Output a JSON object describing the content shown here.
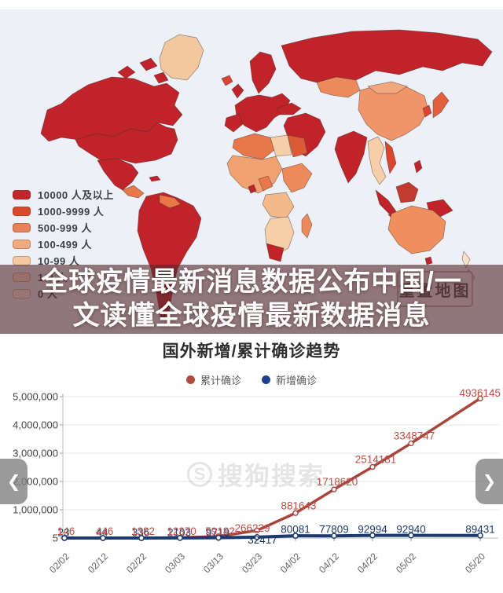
{
  "headline": {
    "line1": "全球疫情最新消息数据公布中国/一",
    "line2": "文读懂全球疫情最新数据消息"
  },
  "map": {
    "background": "#edf1f7",
    "reset_button_label": "重置地图",
    "legend": [
      {
        "label": "10000 人及以上",
        "color": "#c2262c"
      },
      {
        "label": "1000-9999 人",
        "color": "#d9492e"
      },
      {
        "label": "500-999 人",
        "color": "#e6815a"
      },
      {
        "label": "100-499 人",
        "color": "#f0ab7e"
      },
      {
        "label": "10-99 人",
        "color": "#f5c9a2"
      },
      {
        "label": "1-9 人",
        "color": "#f9dfc5"
      },
      {
        "label": "0 人",
        "color": "#fdf0e2"
      }
    ],
    "regions": [
      {
        "name": "greenland",
        "color": "#f2c89e"
      },
      {
        "name": "arctic-island-1",
        "color": "#c0242a"
      },
      {
        "name": "arctic-island-2",
        "color": "#c0242a"
      },
      {
        "name": "arctic-island-3",
        "color": "#c0242a"
      },
      {
        "name": "canada",
        "color": "#c0242a"
      },
      {
        "name": "usa",
        "color": "#c0242a"
      },
      {
        "name": "mexico",
        "color": "#c0242a"
      },
      {
        "name": "central-america",
        "color": "#e8774a"
      },
      {
        "name": "caribbean",
        "color": "#c0242a"
      },
      {
        "name": "south-america",
        "color": "#c0242a"
      },
      {
        "name": "venezuela",
        "color": "#e8774a"
      },
      {
        "name": "iceland",
        "color": "#d9452e"
      },
      {
        "name": "scandinavia",
        "color": "#c0242a"
      },
      {
        "name": "uk",
        "color": "#c0242a"
      },
      {
        "name": "europe",
        "color": "#c0242a"
      },
      {
        "name": "iberia",
        "color": "#c0242a"
      },
      {
        "name": "russia",
        "color": "#c0242a"
      },
      {
        "name": "kazakhstan",
        "color": "#ed8a5c"
      },
      {
        "name": "turkey",
        "color": "#c0242a"
      },
      {
        "name": "middle-east",
        "color": "#c0242a"
      },
      {
        "name": "china",
        "color": "#f0946a"
      },
      {
        "name": "mongolia",
        "color": "#f2a87e"
      },
      {
        "name": "india",
        "color": "#c0242a"
      },
      {
        "name": "indochina",
        "color": "#f6cfa8"
      },
      {
        "name": "vietnam",
        "color": "#d9452e"
      },
      {
        "name": "japan",
        "color": "#e2603c"
      },
      {
        "name": "korea",
        "color": "#d9452e"
      },
      {
        "name": "philippines",
        "color": "#c0242a"
      },
      {
        "name": "borneo",
        "color": "#c33a30"
      },
      {
        "name": "sumatra",
        "color": "#c0242a"
      },
      {
        "name": "java",
        "color": "#c0242a"
      },
      {
        "name": "papua",
        "color": "#c0242a"
      },
      {
        "name": "maghreb",
        "color": "#e8774a"
      },
      {
        "name": "libya",
        "color": "#f6cfa8"
      },
      {
        "name": "egypt",
        "color": "#dd5a36"
      },
      {
        "name": "sahel-west-africa",
        "color": "#f0a371"
      },
      {
        "name": "nigeria",
        "color": "#e8774a"
      },
      {
        "name": "ghana",
        "color": "#c0242a"
      },
      {
        "name": "horn-of-africa",
        "color": "#ed8a5c"
      },
      {
        "name": "congo",
        "color": "#f4b98b"
      },
      {
        "name": "southern-africa",
        "color": "#f6cfa8"
      },
      {
        "name": "south-africa",
        "color": "#c0242a"
      },
      {
        "name": "madagascar",
        "color": "#ed8a5c"
      },
      {
        "name": "australia",
        "color": "#ef8f5e"
      },
      {
        "name": "tasmania",
        "color": "#c0242a"
      },
      {
        "name": "new-zealand-north",
        "color": "#f6e3c9"
      },
      {
        "name": "new-zealand-south",
        "color": "#f6e3c9"
      }
    ]
  },
  "chart_data": {
    "type": "line",
    "title": "国外新增/累计确诊趋势",
    "x": [
      "02/02",
      "02/12",
      "02/22",
      "03/03",
      "03/13",
      "03/23",
      "04/02",
      "04/12",
      "04/22",
      "05/02",
      "05/20"
    ],
    "series": [
      {
        "name": "累计确诊",
        "color": "#a8453c",
        "label_color": "#bf4e44",
        "values": [
          146,
          446,
          1382,
          12370,
          59182,
          266229,
          881643,
          1718620,
          2514181,
          3348747,
          4936145
        ]
      },
      {
        "name": "新增确诊",
        "color": "#1d3a6e",
        "label_color": "#1d3a6e",
        "values": [
          23,
          44,
          336,
          2103,
          9719,
          32417,
          80081,
          77809,
          92994,
          92940,
          89431
        ]
      }
    ],
    "ylim": [
      5,
      5000000
    ],
    "yticks": [
      "5,000,000",
      "4,000,000",
      "3,000,000",
      "2,000,000",
      "1,000,000",
      "5"
    ],
    "grid": true,
    "legend_position": "top"
  },
  "watermark": {
    "logo": "S",
    "text": "搜狗搜索"
  },
  "nav": {
    "left": "❮",
    "right": "❯"
  }
}
